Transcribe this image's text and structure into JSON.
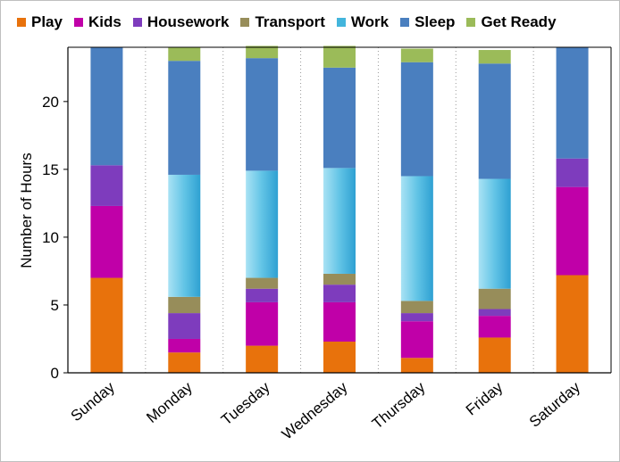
{
  "chart_data": {
    "type": "bar",
    "stacked": true,
    "title": "",
    "xlabel": "",
    "ylabel": "Number of Hours",
    "ylim": [
      0,
      24
    ],
    "yticks": [
      0,
      5,
      10,
      15,
      20
    ],
    "grid": "vertical dotted separators between categories",
    "legend_position": "top",
    "categories": [
      "Sunday",
      "Monday",
      "Tuesday",
      "Wednesday",
      "Thursday",
      "Friday",
      "Saturday"
    ],
    "series": [
      {
        "name": "Play",
        "color": "#e8720c",
        "values": [
          7.0,
          1.5,
          2.0,
          2.3,
          1.1,
          2.6,
          7.2
        ]
      },
      {
        "name": "Kids",
        "color": "#c000a8",
        "values": [
          5.3,
          1.0,
          3.2,
          2.9,
          2.7,
          1.6,
          6.5
        ]
      },
      {
        "name": "Housework",
        "color": "#7e3cbd",
        "values": [
          3.0,
          1.9,
          1.0,
          1.3,
          0.6,
          0.5,
          2.1
        ]
      },
      {
        "name": "Transport",
        "color": "#978d5a",
        "values": [
          0,
          1.2,
          0.8,
          0.8,
          0.9,
          1.5,
          0
        ]
      },
      {
        "name": "Work",
        "color": "#43b5dc",
        "values": [
          0,
          9.0,
          7.9,
          7.8,
          9.2,
          8.1,
          0
        ]
      },
      {
        "name": "Sleep",
        "color": "#4a7fbf",
        "values": [
          8.7,
          8.4,
          8.3,
          7.4,
          8.4,
          8.5,
          8.2
        ]
      },
      {
        "name": "Get Ready",
        "color": "#9bbb59",
        "values": [
          0,
          1.0,
          0.9,
          1.6,
          1.0,
          1.0,
          0
        ]
      }
    ]
  }
}
